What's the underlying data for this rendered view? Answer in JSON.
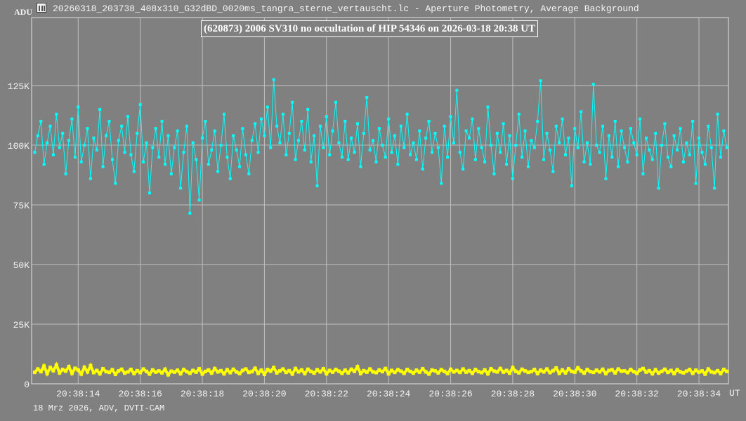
{
  "window": {
    "title": "20260318_203738_408x310_G32dBD_0020ms_tangra_sterne_vertauscht.lc - Aperture Photometry, Average Background",
    "icon": "tangra-app-icon"
  },
  "footer": "18 Mrz 2026, ADV, DVTI-CAM",
  "chart_data": {
    "type": "line",
    "title": "(620873) 2006 SV310 no occultation of HIP 54346 on 2026-03-18  20:38 UT",
    "ylabel": "ADU",
    "xlabel": "UT",
    "ylim": [
      0,
      153500
    ],
    "xlim": [
      "20:38:12.5",
      "20:38:34.95"
    ],
    "yticks": [
      {
        "value": 0,
        "label": "0"
      },
      {
        "value": 25000,
        "label": "25K"
      },
      {
        "value": 50000,
        "label": "50K"
      },
      {
        "value": 75000,
        "label": "75K"
      },
      {
        "value": 100000,
        "label": "100K"
      },
      {
        "value": 125000,
        "label": "125K"
      }
    ],
    "xticks": [
      "20:38:14",
      "20:38:16",
      "20:38:18",
      "20:38:20",
      "20:38:22",
      "20:38:24",
      "20:38:26",
      "20:38:28",
      "20:38:30",
      "20:38:32",
      "20:38:34"
    ],
    "grid": true,
    "legend": "none",
    "colors": {
      "background": "#808080",
      "grid": "#c0c0c0",
      "target": "#00ffff",
      "background_signal": "#ffff00"
    },
    "x": [
      "20:38:12.6",
      "20:38:12.7",
      "20:38:12.8",
      "20:38:12.9",
      "20:38:13.0",
      "20:38:13.1",
      "20:38:13.2",
      "20:38:13.3",
      "20:38:13.4",
      "20:38:13.5",
      "20:38:13.6",
      "20:38:13.7",
      "20:38:13.8",
      "20:38:13.9",
      "20:38:14.0",
      "20:38:14.1",
      "20:38:14.2",
      "20:38:14.3",
      "20:38:14.4",
      "20:38:14.5",
      "20:38:14.6",
      "20:38:14.7",
      "20:38:14.8",
      "20:38:14.9",
      "20:38:15.0",
      "20:38:15.1",
      "20:38:15.2",
      "20:38:15.3",
      "20:38:15.4",
      "20:38:15.5",
      "20:38:15.6",
      "20:38:15.7",
      "20:38:15.8",
      "20:38:15.9",
      "20:38:16.0",
      "20:38:16.1",
      "20:38:16.2",
      "20:38:16.3",
      "20:38:16.4",
      "20:38:16.5",
      "20:38:16.6",
      "20:38:16.7",
      "20:38:16.8",
      "20:38:16.9",
      "20:38:17.0",
      "20:38:17.1",
      "20:38:17.2",
      "20:38:17.3",
      "20:38:17.4",
      "20:38:17.5",
      "20:38:17.6",
      "20:38:17.7",
      "20:38:17.8",
      "20:38:17.9",
      "20:38:18.0",
      "20:38:18.1",
      "20:38:18.2",
      "20:38:18.3",
      "20:38:18.4",
      "20:38:18.5",
      "20:38:18.6",
      "20:38:18.7",
      "20:38:18.8",
      "20:38:18.9",
      "20:38:19.0",
      "20:38:19.1",
      "20:38:19.2",
      "20:38:19.3",
      "20:38:19.4",
      "20:38:19.5",
      "20:38:19.6",
      "20:38:19.7",
      "20:38:19.8",
      "20:38:19.9",
      "20:38:20.0",
      "20:38:20.1",
      "20:38:20.2",
      "20:38:20.3",
      "20:38:20.4",
      "20:38:20.5",
      "20:38:20.6",
      "20:38:20.7",
      "20:38:20.8",
      "20:38:20.9",
      "20:38:21.0",
      "20:38:21.1",
      "20:38:21.2",
      "20:38:21.3",
      "20:38:21.4",
      "20:38:21.5",
      "20:38:21.6",
      "20:38:21.7",
      "20:38:21.8",
      "20:38:21.9",
      "20:38:22.0",
      "20:38:22.1",
      "20:38:22.2",
      "20:38:22.3",
      "20:38:22.4",
      "20:38:22.5",
      "20:38:22.6",
      "20:38:22.7",
      "20:38:22.8",
      "20:38:22.9",
      "20:38:23.0",
      "20:38:23.1",
      "20:38:23.2",
      "20:38:23.3",
      "20:38:23.4",
      "20:38:23.5",
      "20:38:23.6",
      "20:38:23.7",
      "20:38:23.8",
      "20:38:23.9",
      "20:38:24.0",
      "20:38:24.1",
      "20:38:24.2",
      "20:38:24.3",
      "20:38:24.4",
      "20:38:24.5",
      "20:38:24.6",
      "20:38:24.7",
      "20:38:24.8",
      "20:38:24.9",
      "20:38:25.0",
      "20:38:25.1",
      "20:38:25.2",
      "20:38:25.3",
      "20:38:25.4",
      "20:38:25.5",
      "20:38:25.6",
      "20:38:25.7",
      "20:38:25.8",
      "20:38:25.9",
      "20:38:26.0",
      "20:38:26.1",
      "20:38:26.2",
      "20:38:26.3",
      "20:38:26.4",
      "20:38:26.5",
      "20:38:26.6",
      "20:38:26.7",
      "20:38:26.8",
      "20:38:26.9",
      "20:38:27.0",
      "20:38:27.1",
      "20:38:27.2",
      "20:38:27.3",
      "20:38:27.4",
      "20:38:27.5",
      "20:38:27.6",
      "20:38:27.7",
      "20:38:27.8",
      "20:38:27.9",
      "20:38:28.0",
      "20:38:28.1",
      "20:38:28.2",
      "20:38:28.3",
      "20:38:28.4",
      "20:38:28.5",
      "20:38:28.6",
      "20:38:28.7",
      "20:38:28.8",
      "20:38:28.9",
      "20:38:29.0",
      "20:38:29.1",
      "20:38:29.2",
      "20:38:29.3",
      "20:38:29.4",
      "20:38:29.5",
      "20:38:29.6",
      "20:38:29.7",
      "20:38:29.8",
      "20:38:29.9",
      "20:38:30.0",
      "20:38:30.1",
      "20:38:30.2",
      "20:38:30.3",
      "20:38:30.4",
      "20:38:30.5",
      "20:38:30.6",
      "20:38:30.7",
      "20:38:30.8",
      "20:38:30.9",
      "20:38:31.0",
      "20:38:31.1",
      "20:38:31.2",
      "20:38:31.3",
      "20:38:31.4",
      "20:38:31.5",
      "20:38:31.6",
      "20:38:31.7",
      "20:38:31.8",
      "20:38:31.9",
      "20:38:32.0",
      "20:38:32.1",
      "20:38:32.2",
      "20:38:32.3",
      "20:38:32.4",
      "20:38:32.5",
      "20:38:32.6",
      "20:38:32.7",
      "20:38:32.8",
      "20:38:32.9",
      "20:38:33.0",
      "20:38:33.1",
      "20:38:33.2",
      "20:38:33.3",
      "20:38:33.4",
      "20:38:33.5",
      "20:38:33.6",
      "20:38:33.7",
      "20:38:33.8",
      "20:38:33.9",
      "20:38:34.0",
      "20:38:34.1",
      "20:38:34.2",
      "20:38:34.3",
      "20:38:34.4",
      "20:38:34.5",
      "20:38:34.6",
      "20:38:34.7",
      "20:38:34.8",
      "20:38:34.9"
    ],
    "series": [
      {
        "color": "#00ffff",
        "unit": "K ADU",
        "values": [
          97,
          104,
          110,
          92,
          101,
          108,
          96,
          113,
          99,
          105,
          88,
          102,
          111,
          95,
          116,
          93,
          100,
          107,
          86,
          103,
          98,
          115,
          91,
          104,
          110,
          94,
          84,
          102,
          108,
          97,
          112,
          96,
          89,
          105,
          117,
          93,
          101,
          80,
          99,
          107,
          95,
          110,
          92,
          104,
          88,
          99,
          106,
          82,
          97,
          108,
          71.5,
          101,
          94,
          77,
          103,
          110,
          92,
          98,
          106,
          89,
          100,
          113,
          95,
          86,
          104,
          98,
          91,
          107,
          96,
          88,
          102,
          109,
          97,
          111,
          104,
          116,
          99,
          127.5,
          108,
          101,
          113,
          96,
          105,
          118,
          94,
          102,
          110,
          98,
          115,
          93,
          104,
          83,
          108,
          99,
          112,
          96,
          106,
          118,
          101,
          95,
          110,
          94,
          103,
          97,
          109,
          91,
          105,
          120,
          98,
          102,
          93,
          107,
          100,
          95,
          111,
          97,
          104,
          92,
          108,
          99,
          113,
          96,
          101,
          94,
          106,
          90,
          103,
          110,
          97,
          105,
          99,
          84,
          108,
          95,
          112,
          101,
          123,
          97,
          90,
          106,
          103,
          111,
          94,
          107,
          99,
          93,
          116,
          100,
          88,
          105,
          97,
          109,
          92,
          104,
          86,
          100,
          113,
          95,
          106,
          91,
          102,
          99,
          110,
          127,
          94,
          105,
          98,
          89,
          108,
          101,
          111,
          96,
          103,
          83,
          107,
          99,
          114,
          93,
          101,
          92,
          125.5,
          100,
          97,
          108,
          86,
          104,
          95,
          110,
          91,
          106,
          99,
          93,
          107,
          101,
          96,
          111,
          88,
          103,
          98,
          94,
          105,
          82,
          100,
          109,
          95,
          91,
          104,
          98,
          107,
          93,
          101,
          96,
          110,
          84,
          103,
          97,
          92,
          108,
          99,
          82,
          113,
          95,
          106,
          99
        ]
      },
      {
        "color": "#ffff00",
        "unit": "K ADU",
        "values": [
          4.8,
          6.2,
          5.1,
          7.4,
          4.3,
          6.8,
          5.5,
          7.9,
          4.6,
          6.0,
          5.3,
          7.2,
          4.4,
          6.5,
          5.8,
          4.1,
          6.9,
          5.0,
          7.6,
          4.7,
          5.6,
          4.2,
          6.3,
          5.1,
          4.8,
          5.9,
          4.0,
          5.4,
          6.1,
          4.5,
          5.0,
          6.0,
          4.3,
          5.5,
          4.7,
          6.2,
          5.2,
          4.1,
          5.8,
          4.9,
          5.4,
          4.6,
          6.1,
          3.8,
          5.3,
          4.9,
          5.7,
          4.2,
          6.0,
          5.1,
          4.4,
          5.6,
          4.9,
          6.3,
          4.1,
          5.2,
          5.8,
          4.5,
          6.4,
          5.0,
          5.5,
          4.2,
          5.9,
          4.7,
          6.1,
          5.0,
          4.3,
          5.6,
          6.2,
          4.8,
          5.1,
          6.5,
          4.4,
          5.7,
          4.0,
          6.0,
          5.3,
          6.8,
          4.6,
          5.4,
          6.2,
          4.8,
          5.5,
          4.1,
          6.4,
          5.0,
          5.8,
          4.3,
          6.1,
          5.2,
          4.5,
          5.9,
          5.0,
          6.3,
          4.2,
          5.6,
          4.9,
          6.0,
          5.3,
          4.4,
          5.7,
          4.6,
          6.1,
          5.2,
          7.2,
          4.3,
          5.5,
          4.9,
          6.2,
          5.0,
          4.7,
          5.8,
          5.1,
          6.4,
          4.2,
          5.6,
          4.8,
          5.9,
          5.3,
          4.4,
          6.0,
          5.2,
          4.5,
          5.7,
          4.9,
          6.3,
          5.0,
          4.1,
          5.8,
          5.4,
          4.6,
          5.9,
          5.2,
          4.3,
          6.1,
          5.0,
          5.6,
          4.8,
          6.2,
          4.9,
          5.5,
          4.4,
          6.0,
          5.1,
          4.7,
          5.8,
          4.2,
          6.3,
          5.3,
          5.0,
          6.4,
          4.9,
          5.6,
          4.5,
          6.8,
          5.2,
          4.6,
          6.1,
          5.4,
          4.8,
          5.1,
          6.0,
          4.3,
          5.7,
          5.0,
          6.2,
          4.7,
          5.5,
          6.6,
          4.4,
          5.8,
          4.6,
          6.3,
          5.2,
          4.9,
          6.7,
          5.4,
          4.5,
          6.0,
          5.1,
          4.8,
          5.7,
          5.0,
          6.1,
          4.3,
          5.6,
          5.9,
          4.6,
          6.2,
          5.3,
          5.4,
          4.7,
          6.0,
          5.1,
          4.4,
          5.8,
          6.4,
          4.9,
          5.5,
          4.2,
          5.9,
          4.5,
          5.2,
          6.1,
          4.8,
          5.6,
          4.3,
          5.9,
          5.0,
          4.6,
          5.3,
          6.0,
          4.4,
          5.7,
          4.9,
          5.4,
          4.1,
          6.2,
          5.0,
          4.7,
          5.5,
          4.3,
          6.0,
          5.2
        ]
      }
    ]
  }
}
